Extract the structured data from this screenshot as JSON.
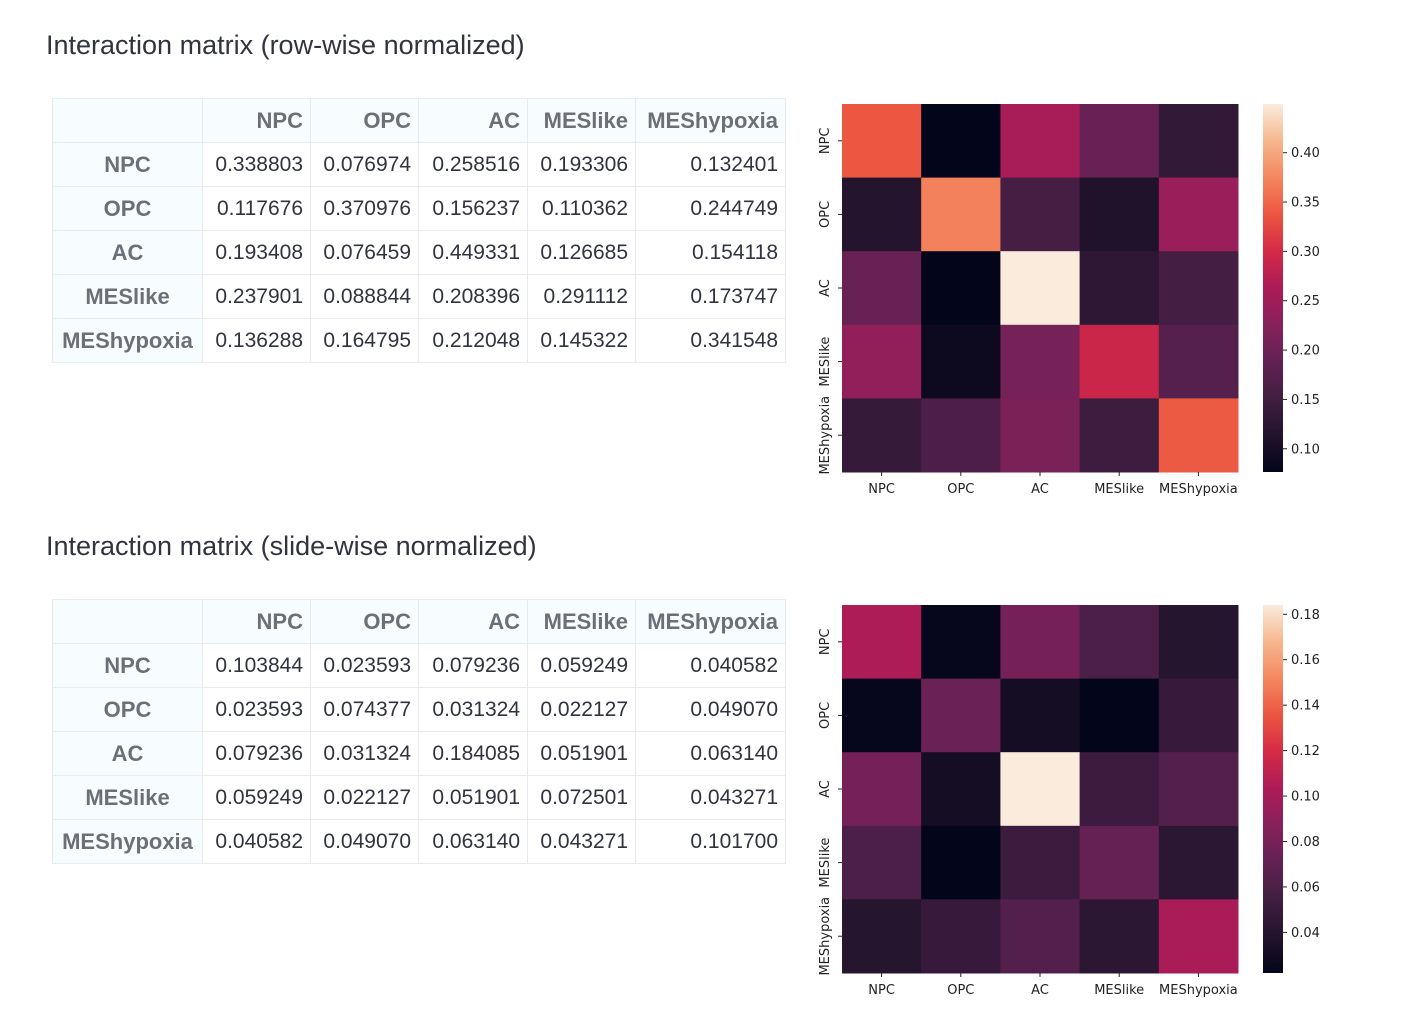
{
  "sections": [
    {
      "title": "Interaction matrix (row-wise normalized)",
      "columns": [
        "NPC",
        "OPC",
        "AC",
        "MESlike",
        "MEShypoxia"
      ],
      "rows": [
        {
          "label": "NPC",
          "values": [
            "0.338803",
            "0.076974",
            "0.258516",
            "0.193306",
            "0.132401"
          ]
        },
        {
          "label": "OPC",
          "values": [
            "0.117676",
            "0.370976",
            "0.156237",
            "0.110362",
            "0.244749"
          ]
        },
        {
          "label": "AC",
          "values": [
            "0.193408",
            "0.076459",
            "0.449331",
            "0.126685",
            "0.154118"
          ]
        },
        {
          "label": "MESlike",
          "values": [
            "0.237901",
            "0.088844",
            "0.208396",
            "0.291112",
            "0.173747"
          ]
        },
        {
          "label": "MEShypoxia",
          "values": [
            "0.136288",
            "0.164795",
            "0.212048",
            "0.145322",
            "0.341548"
          ]
        }
      ]
    },
    {
      "title": "Interaction matrix (slide-wise normalized)",
      "columns": [
        "NPC",
        "OPC",
        "AC",
        "MESlike",
        "MEShypoxia"
      ],
      "rows": [
        {
          "label": "NPC",
          "values": [
            "0.103844",
            "0.023593",
            "0.079236",
            "0.059249",
            "0.040582"
          ]
        },
        {
          "label": "OPC",
          "values": [
            "0.023593",
            "0.074377",
            "0.031324",
            "0.022127",
            "0.049070"
          ]
        },
        {
          "label": "AC",
          "values": [
            "0.079236",
            "0.031324",
            "0.184085",
            "0.051901",
            "0.063140"
          ]
        },
        {
          "label": "MESlike",
          "values": [
            "0.059249",
            "0.022127",
            "0.051901",
            "0.072501",
            "0.043271"
          ]
        },
        {
          "label": "MEShypoxia",
          "values": [
            "0.040582",
            "0.049070",
            "0.063140",
            "0.043271",
            "0.101700"
          ]
        }
      ]
    }
  ],
  "chart_data": [
    {
      "type": "heatmap",
      "x": [
        "NPC",
        "OPC",
        "AC",
        "MESlike",
        "MEShypoxia"
      ],
      "y": [
        "NPC",
        "OPC",
        "AC",
        "MESlike",
        "MEShypoxia"
      ],
      "z": [
        [
          0.338803,
          0.076974,
          0.258516,
          0.193306,
          0.132401
        ],
        [
          0.117676,
          0.370976,
          0.156237,
          0.110362,
          0.244749
        ],
        [
          0.193408,
          0.076459,
          0.449331,
          0.126685,
          0.154118
        ],
        [
          0.237901,
          0.088844,
          0.208396,
          0.291112,
          0.173747
        ],
        [
          0.136288,
          0.164795,
          0.212048,
          0.145322,
          0.341548
        ]
      ],
      "colorscale": "rocket",
      "colorbar_range": [
        0.076459,
        0.449331
      ],
      "colorbar_ticks": [
        "0.10",
        "0.15",
        "0.20",
        "0.25",
        "0.30",
        "0.35",
        "0.40"
      ],
      "legend_position": "right"
    },
    {
      "type": "heatmap",
      "x": [
        "NPC",
        "OPC",
        "AC",
        "MESlike",
        "MEShypoxia"
      ],
      "y": [
        "NPC",
        "OPC",
        "AC",
        "MESlike",
        "MEShypoxia"
      ],
      "z": [
        [
          0.103844,
          0.023593,
          0.079236,
          0.059249,
          0.040582
        ],
        [
          0.023593,
          0.074377,
          0.031324,
          0.022127,
          0.04907
        ],
        [
          0.079236,
          0.031324,
          0.184085,
          0.051901,
          0.06314
        ],
        [
          0.059249,
          0.022127,
          0.051901,
          0.072501,
          0.043271
        ],
        [
          0.040582,
          0.04907,
          0.06314,
          0.043271,
          0.1017
        ]
      ],
      "colorscale": "rocket",
      "colorbar_range": [
        0.022127,
        0.184085
      ],
      "colorbar_ticks": [
        "0.04",
        "0.06",
        "0.08",
        "0.10",
        "0.12",
        "0.14",
        "0.16",
        "0.18"
      ],
      "legend_position": "right"
    }
  ]
}
